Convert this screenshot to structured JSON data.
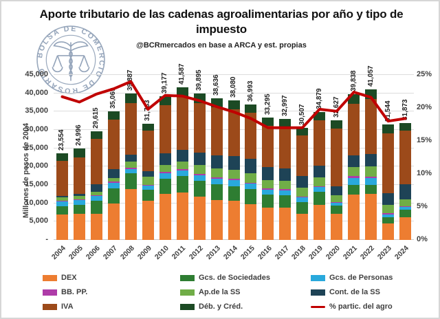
{
  "header": {
    "title": "Aporte tributario de las cadenas agroalimentarias por año y tipo de impuesto",
    "subtitle": "@BCRmercados en base a ARCA y est. propias",
    "logo_text": "BOLSA DE COMERCIO DE ROSARIO"
  },
  "colors": {
    "dex": "#ED7D31",
    "gcs_sociedades": "#2E7D32",
    "gcs_personas": "#29A9DC",
    "bb_pp": "#AE3CA8",
    "ap_ss": "#70AD47",
    "cont_ss": "#1E4356",
    "iva": "#9C4A1A",
    "deb_cred": "#1C4A24",
    "line": "#C00000",
    "gridline": "#DCDCDC"
  },
  "chart_data": {
    "type": "bar",
    "subtype": "stacked-bars-with-line-overlay",
    "categories": [
      "2004",
      "2005",
      "2006",
      "2007",
      "2008",
      "2009",
      "2010",
      "2011",
      "2012",
      "2013",
      "2014",
      "2015",
      "2016",
      "2017",
      "2018",
      "2019",
      "2020",
      "2021",
      "2022",
      "2023",
      "2024"
    ],
    "totals": [
      23554,
      24996,
      29615,
      35069,
      39887,
      31733,
      39177,
      41587,
      39895,
      38636,
      38080,
      36993,
      33295,
      32997,
      30507,
      34879,
      32627,
      39838,
      41057,
      31544,
      31873
    ],
    "totals_labels": [
      "23,554",
      "24,996",
      "29,615",
      "35,069",
      "39,887",
      "31,733",
      "39,177",
      "41,587",
      "39,895",
      "38,636",
      "38,080",
      "36,993",
      "33,295",
      "32,997",
      "30,507",
      "34,879",
      "32,627",
      "39,838",
      "41,057",
      "31,544",
      "31,873"
    ],
    "series": [
      {
        "name": "DEX",
        "color": "#ED7D31",
        "values": [
          7000,
          7150,
          7220,
          10000,
          13800,
          10700,
          12600,
          13000,
          11800,
          10900,
          10600,
          9800,
          8900,
          8800,
          7200,
          9500,
          7090,
          12420,
          12550,
          4580,
          6150
        ]
      },
      {
        "name": "Gcs. de Sociedades",
        "color": "#2E7D32",
        "values": [
          2260,
          2450,
          3450,
          4080,
          4400,
          2900,
          4140,
          4500,
          4300,
          4200,
          4100,
          4000,
          3500,
          3400,
          3200,
          3600,
          2200,
          2510,
          2380,
          1570,
          2010
        ]
      },
      {
        "name": "Gcs. de Personas",
        "color": "#29A9DC",
        "values": [
          1320,
          1320,
          1260,
          1570,
          1130,
          1130,
          1500,
          1500,
          1600,
          1600,
          1550,
          1500,
          1300,
          1300,
          1200,
          1300,
          750,
          1880,
          1880,
          720,
          820
        ]
      },
      {
        "name": "BB. PP.",
        "color": "#AE3CA8",
        "values": [
          190,
          190,
          190,
          200,
          440,
          250,
          300,
          300,
          350,
          350,
          350,
          350,
          300,
          300,
          280,
          300,
          310,
          630,
          500,
          360,
          180
        ]
      },
      {
        "name": "Ap.de la SS",
        "color": "#70AD47",
        "values": [
          940,
          940,
          940,
          940,
          1570,
          2200,
          1880,
          2000,
          2300,
          2500,
          2500,
          2600,
          2400,
          2400,
          2300,
          2300,
          1760,
          2510,
          2760,
          2340,
          1890
        ]
      },
      {
        "name": "Cont. de la SS",
        "color": "#1E4356",
        "values": [
          380,
          450,
          2200,
          2500,
          1880,
          1570,
          3200,
          3300,
          3500,
          3600,
          3700,
          3800,
          3400,
          3300,
          3200,
          3200,
          2510,
          3140,
          3320,
          3240,
          4070
        ]
      },
      {
        "name": "IVA",
        "color": "#9C4A1A",
        "values": [
          9384,
          10046,
          12255,
          13579,
          14167,
          10973,
          13057,
          14387,
          13545,
          13086,
          12880,
          12643,
          11395,
          11397,
          11127,
          12479,
          15687,
          14048,
          14967,
          16214,
          14743
        ]
      },
      {
        "name": "Déb. y Créd.",
        "color": "#1C4A24",
        "values": [
          2080,
          2450,
          2100,
          2200,
          2500,
          2010,
          2500,
          2600,
          2500,
          2400,
          2400,
          2300,
          2100,
          2100,
          2000,
          2200,
          2320,
          2700,
          2700,
          2520,
          2010
        ]
      }
    ],
    "line_series": {
      "name": "% partic. del agro",
      "color": "#C00000",
      "values": [
        21.7,
        20.9,
        22.1,
        22.9,
        24.0,
        19.8,
        21.9,
        21.8,
        21.1,
        20.2,
        19.4,
        18.4,
        17.0,
        17.0,
        17.0,
        19.8,
        19.5,
        22.4,
        21.6,
        18.0,
        18.4
      ]
    },
    "left_axis": {
      "label": "Millones de pesos de 2004",
      "ticks": [
        "-",
        "5,000",
        "10,000",
        "15,000",
        "20,000",
        "25,000",
        "30,000",
        "35,000",
        "40,000",
        "45,000"
      ],
      "min": 0,
      "max": 45000,
      "step": 5000
    },
    "right_axis": {
      "ticks": [
        "0%",
        "5%",
        "10%",
        "15%",
        "20%",
        "25%"
      ],
      "min": 0,
      "max": 25,
      "step": 5
    },
    "grid": true,
    "legend_position": "bottom"
  },
  "legend": {
    "items": [
      {
        "label": "DEX",
        "color": "#ED7D31",
        "type": "box"
      },
      {
        "label": "Gcs. de Sociedades",
        "color": "#2E7D32",
        "type": "box"
      },
      {
        "label": "Gcs. de Personas",
        "color": "#29A9DC",
        "type": "box"
      },
      {
        "label": "BB. PP.",
        "color": "#AE3CA8",
        "type": "box"
      },
      {
        "label": "Ap.de la SS",
        "color": "#70AD47",
        "type": "box"
      },
      {
        "label": "Cont. de la SS",
        "color": "#1E4356",
        "type": "box"
      },
      {
        "label": "IVA",
        "color": "#9C4A1A",
        "type": "box"
      },
      {
        "label": "Déb. y Créd.",
        "color": "#1C4A24",
        "type": "box"
      },
      {
        "label": "% partic. del agro",
        "color": "#C00000",
        "type": "line"
      }
    ]
  }
}
